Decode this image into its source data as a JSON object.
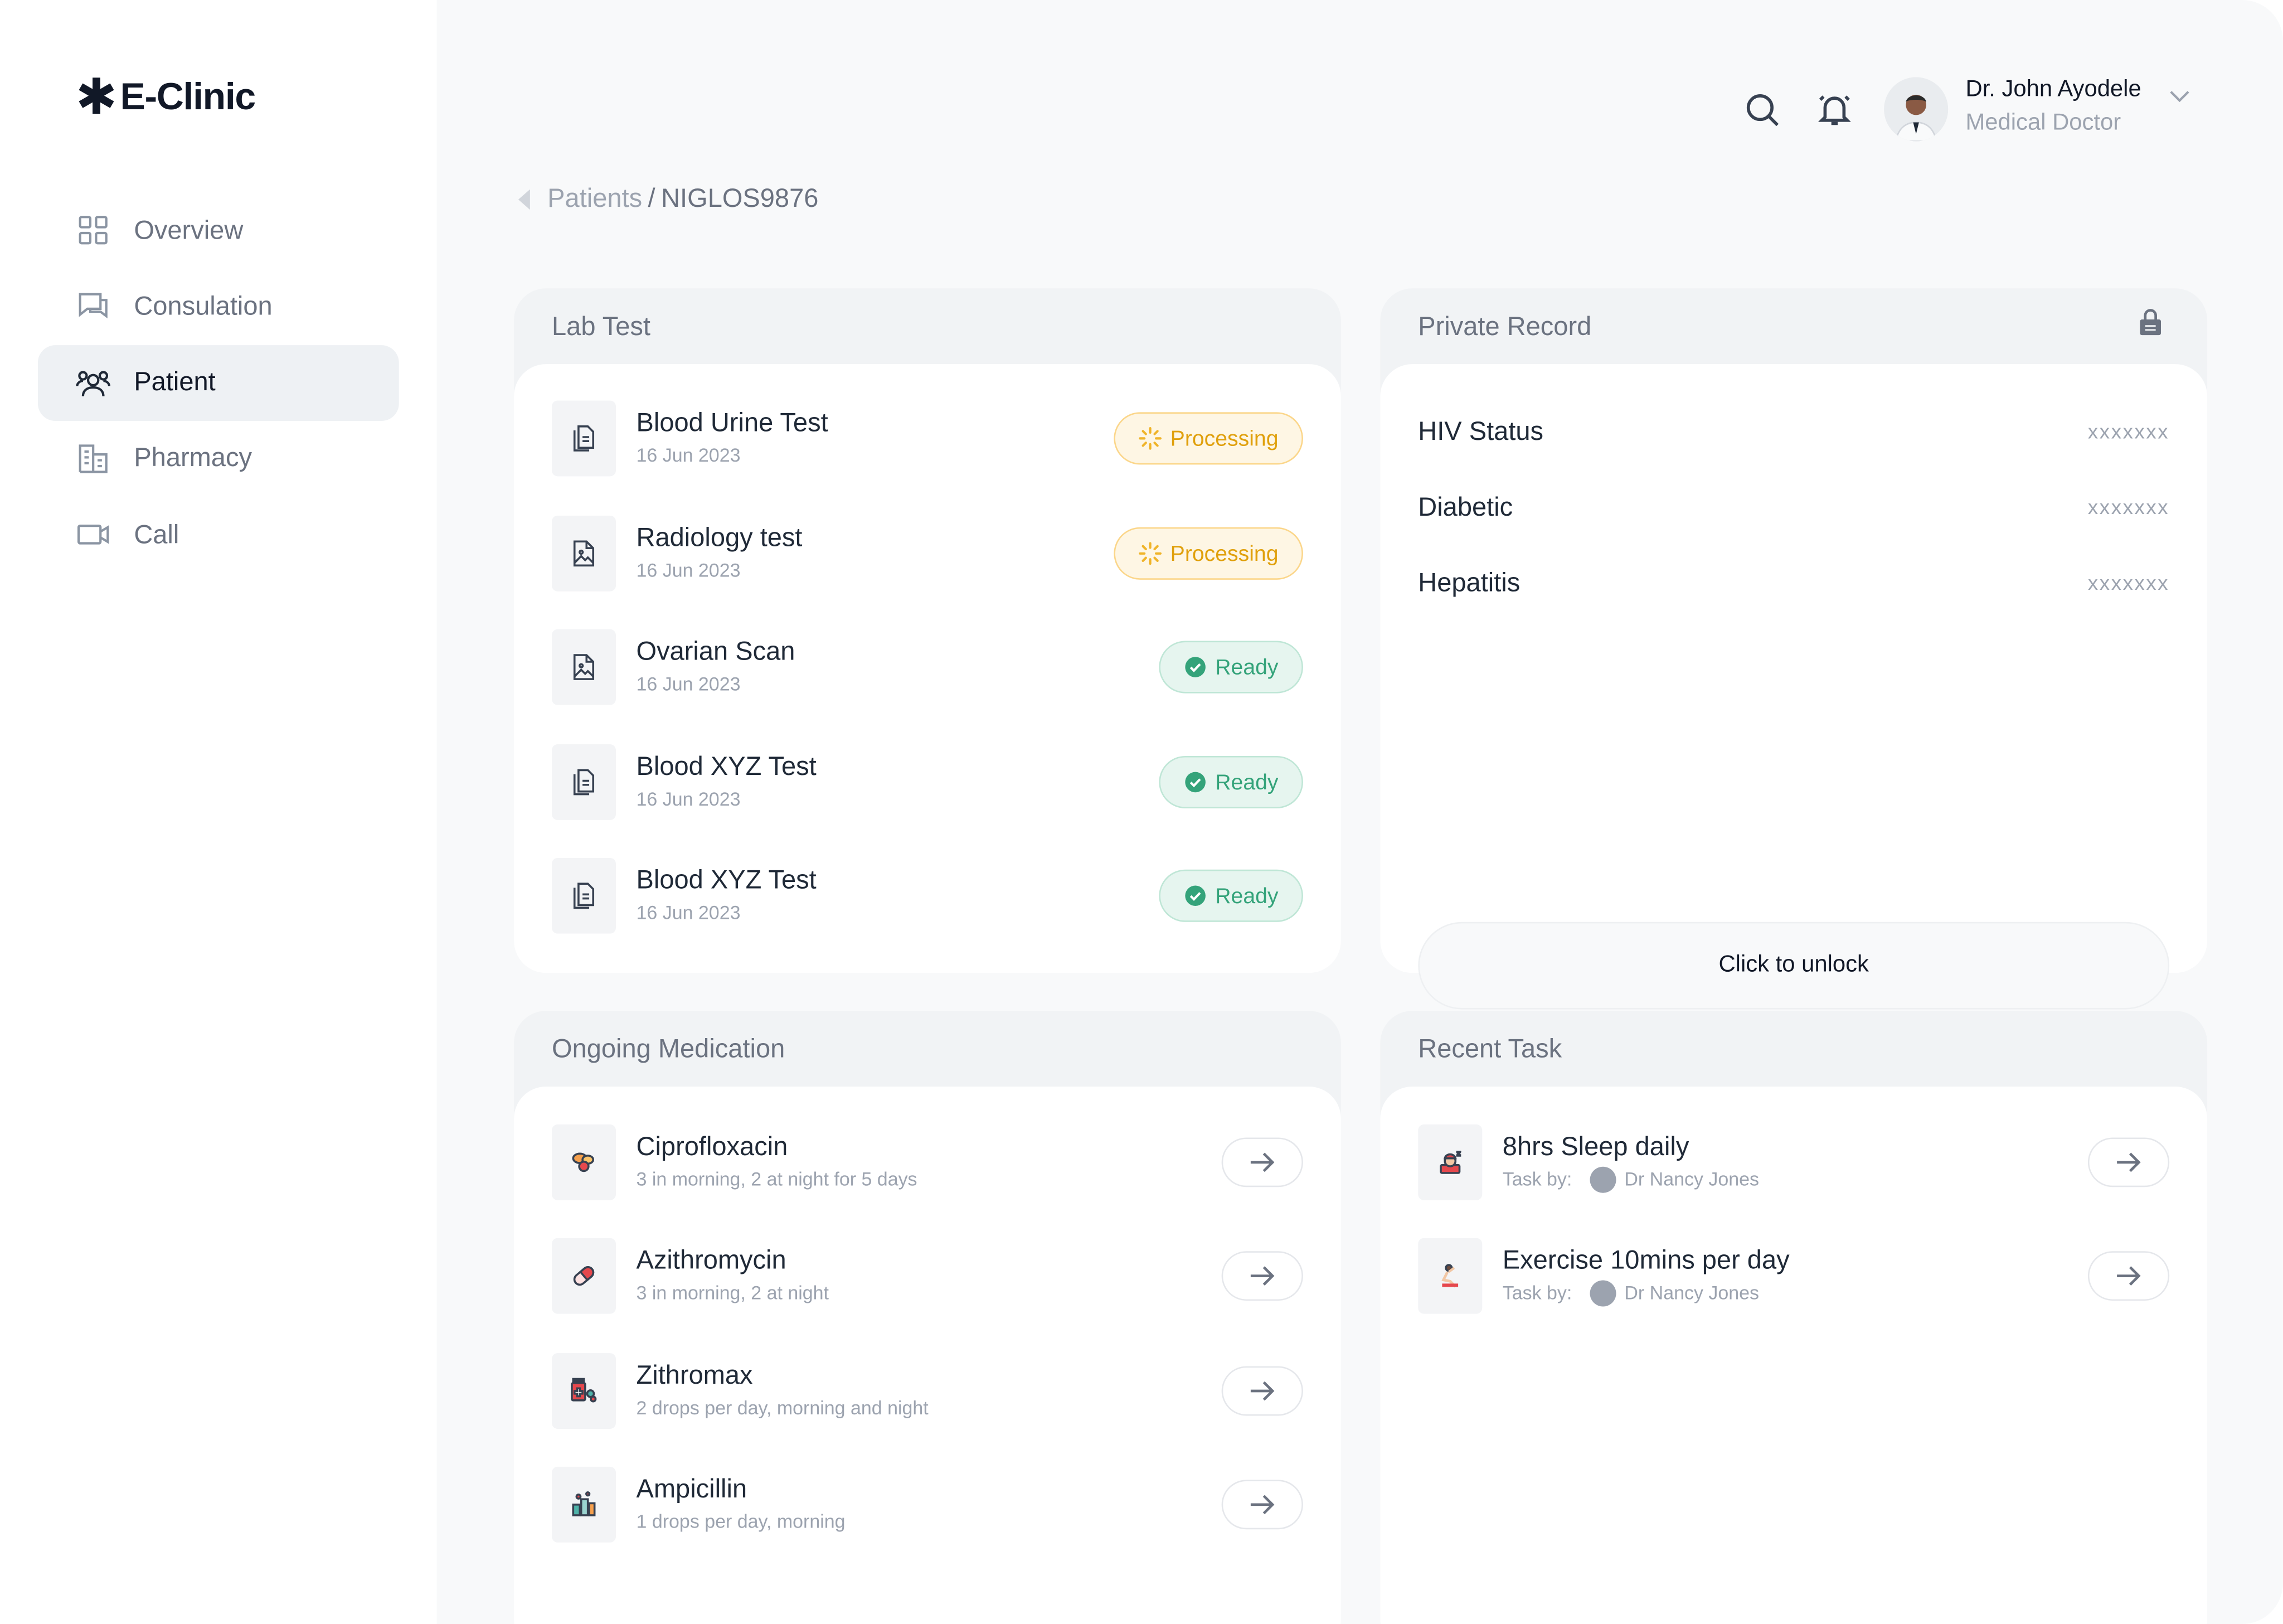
{
  "app": {
    "logo_mark": "✱",
    "logo_text": "E-Clinic"
  },
  "sidebar": {
    "items": [
      {
        "label": "Overview",
        "icon": "grid-icon",
        "active": false
      },
      {
        "label": "Consulation",
        "icon": "chat-icon",
        "active": false
      },
      {
        "label": "Patient",
        "icon": "users-icon",
        "active": true
      },
      {
        "label": "Pharmacy",
        "icon": "building-icon",
        "active": false
      },
      {
        "label": "Call",
        "icon": "video-icon",
        "active": false
      }
    ]
  },
  "header": {
    "user_name": "Dr. John Ayodele",
    "user_role": "Medical Doctor"
  },
  "breadcrumb": {
    "parent": "Patients",
    "separator": "/",
    "current": "NIGLOS9876"
  },
  "lab_test": {
    "title": "Lab Test",
    "items": [
      {
        "name": "Blood Urine Test",
        "date": "16 Jun 2023",
        "status": "Processing",
        "icon": "document-icon"
      },
      {
        "name": "Radiology test",
        "date": "16 Jun 2023",
        "status": "Processing",
        "icon": "image-file-icon"
      },
      {
        "name": "Ovarian Scan",
        "date": "16 Jun 2023",
        "status": "Ready",
        "icon": "image-file-icon"
      },
      {
        "name": "Blood XYZ Test",
        "date": "16 Jun 2023",
        "status": "Ready",
        "icon": "document-icon"
      },
      {
        "name": "Blood XYZ Test",
        "date": "16 Jun 2023",
        "status": "Ready",
        "icon": "document-icon"
      }
    ]
  },
  "private_record": {
    "title": "Private Record",
    "items": [
      {
        "label": "HIV Status",
        "value": "xxxxxxx"
      },
      {
        "label": "Diabetic",
        "value": "xxxxxxx"
      },
      {
        "label": "Hepatitis",
        "value": "xxxxxxx"
      }
    ],
    "unlock_label": "Click to unlock"
  },
  "ongoing_medication": {
    "title": "Ongoing Medication",
    "items": [
      {
        "name": "Ciprofloxacin",
        "dosage": "3 in morning, 2 at night for 5 days",
        "icon": "pills-icon"
      },
      {
        "name": "Azithromycin",
        "dosage": "3 in morning, 2 at night",
        "icon": "capsule-icon"
      },
      {
        "name": "Zithromax",
        "dosage": "2 drops per day, morning and night",
        "icon": "medicine-box-icon"
      },
      {
        "name": "Ampicillin",
        "dosage": "1 drops per day, morning",
        "icon": "medicine-bottles-icon"
      }
    ]
  },
  "recent_task": {
    "title": "Recent Task",
    "items": [
      {
        "name": "8hrs Sleep daily",
        "by_label": "Task by:",
        "by_name": "Dr Nancy Jones",
        "icon": "sleep-icon"
      },
      {
        "name": "Exercise 10mins per day",
        "by_label": "Task by:",
        "by_name": "Dr Nancy Jones",
        "icon": "exercise-icon"
      }
    ]
  },
  "colors": {
    "accent_processing": "#e0a00c",
    "accent_ready": "#34a37a",
    "active_nav_bg": "#eef1f4"
  }
}
